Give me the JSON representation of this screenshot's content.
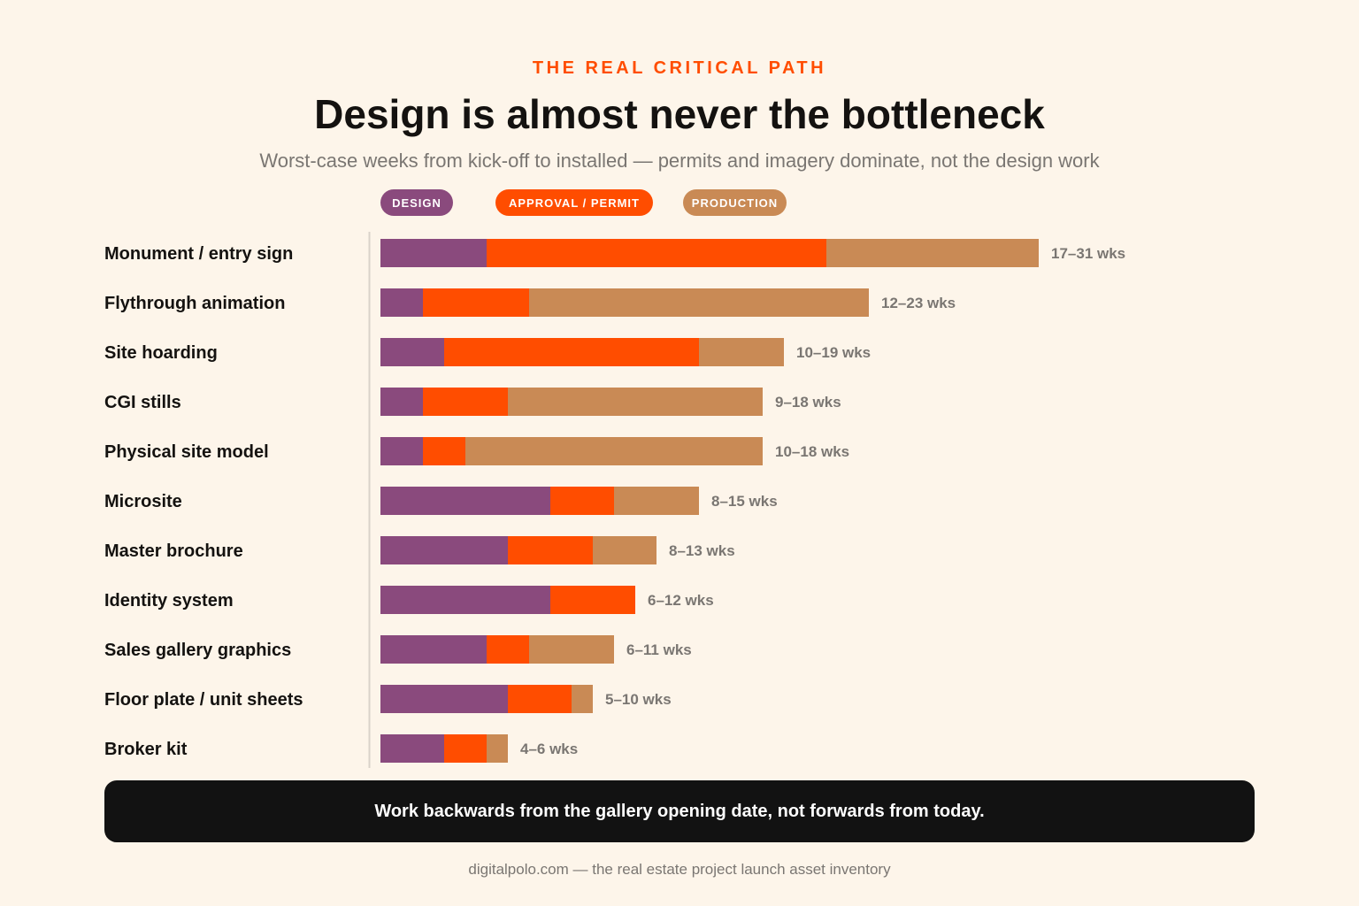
{
  "header": {
    "eyebrow": "THE REAL CRITICAL PATH",
    "title": "Design is almost never the bottleneck",
    "subtitle": "Worst-case weeks from kick-off to installed — permits and imagery dominate, not the design work"
  },
  "legend": [
    {
      "label": "DESIGN",
      "color": "#8a4a7d"
    },
    {
      "label": "APPROVAL / PERMIT",
      "color": "#ff4d00"
    },
    {
      "label": "PRODUCTION",
      "color": "#c98a55"
    }
  ],
  "chart_data": {
    "type": "bar",
    "orientation": "horizontal",
    "stacked": true,
    "title": "Design is almost never the bottleneck",
    "subtitle": "Worst-case weeks from kick-off to installed — permits and imagery dominate, not the design work",
    "categories": [
      "Monument / entry sign",
      "Flythrough animation",
      "Site hoarding",
      "CGI stills",
      "Physical site model",
      "Microsite",
      "Master brochure",
      "Identity system",
      "Sales gallery graphics",
      "Floor plate / unit sheets",
      "Broker kit"
    ],
    "series": [
      {
        "name": "DESIGN",
        "color": "#8a4a7d",
        "values": [
          5,
          2,
          3,
          2,
          2,
          8,
          6,
          8,
          5,
          6,
          3
        ]
      },
      {
        "name": "APPROVAL / PERMIT",
        "color": "#ff4d00",
        "values": [
          16,
          5,
          12,
          4,
          2,
          3,
          4,
          4,
          2,
          3,
          2
        ]
      },
      {
        "name": "PRODUCTION",
        "color": "#c98a55",
        "values": [
          10,
          16,
          4,
          12,
          14,
          4,
          3,
          0,
          4,
          1,
          1
        ]
      }
    ],
    "range_labels": [
      "17–31 wks",
      "12–23 wks",
      "10–19 wks",
      "9–18 wks",
      "10–18 wks",
      "8–15 wks",
      "8–13 wks",
      "6–12 wks",
      "6–11 wks",
      "5–10 wks",
      "4–6 wks"
    ],
    "xlim": [
      0,
      31
    ],
    "grid": false,
    "legend_position": "top-left"
  },
  "callout": "Work backwards from the gallery opening date, not forwards from today.",
  "footer": "digitalpolo.com — the real estate project launch asset inventory"
}
